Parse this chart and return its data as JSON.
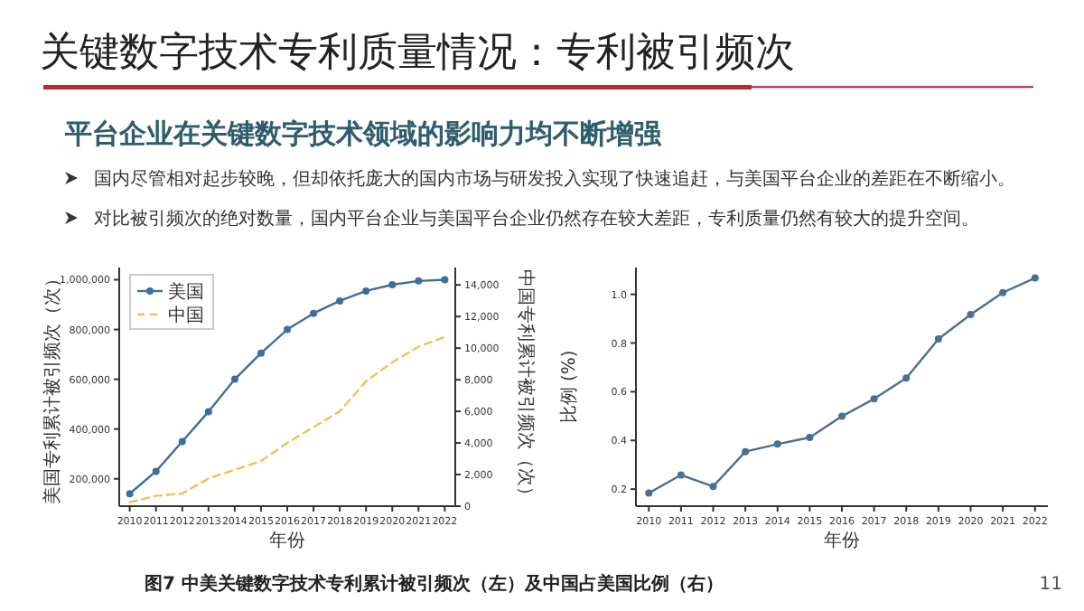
{
  "chart_data": [
    {
      "type": "line",
      "title": "关键数字技术专利质量情况：专利被引频次",
      "subtitle": "平台企业在关键数字技术领域的影响力均不断增强",
      "annotations": [
        "国内尽管相对起步较晚，但却依托庞大的国内市场与研发投入实现了快速追赶，与美国平台企业的差距在不断缩小。",
        "对比被引频次的绝对数量，国内平台企业与美国平台企业仍然存在较大差距，专利质量仍然有较大的提升空间。",
        "图7 中美关键数字技术专利累计被引频次（左）及中国占美国比例（右）",
        "11"
      ],
      "xlabel": "年份",
      "ylabel": "美国专利累计被引频次（次）",
      "y2label": "中国专利累计被引频次（次）",
      "categories": [
        "2010",
        "2011",
        "2012",
        "2013",
        "2014",
        "2015",
        "2016",
        "2017",
        "2018",
        "2019",
        "2020",
        "2021",
        "2022"
      ],
      "series": [
        {
          "name": "美国",
          "color": "#3d6e9e",
          "marker": "circle",
          "line_style": "solid",
          "values": [
            140000,
            230000,
            350000,
            470000,
            600000,
            705000,
            800000,
            865000,
            915000,
            955000,
            980000,
            995000,
            1000000
          ]
        },
        {
          "name": "中国",
          "color": "#f2c14e",
          "marker": "none",
          "line_style": "dashed",
          "axis": "y2",
          "values": [
            250,
            650,
            800,
            1750,
            2300,
            2850,
            4000,
            5000,
            6000,
            7900,
            9100,
            10100,
            10700
          ]
        }
      ],
      "ylim": [
        90000,
        1049000
      ],
      "yticks": [
        {
          "value": 200000,
          "label": "200,000"
        },
        {
          "value": 400000,
          "label": "400,000"
        },
        {
          "value": 600000,
          "label": "600,000"
        },
        {
          "value": 800000,
          "label": "800,000"
        },
        {
          "value": 1000000,
          "label": "1,000,000"
        }
      ],
      "y2lim": [
        0,
        15100
      ],
      "y2ticks": [
        0,
        {
          "value": 2000,
          "label": "2,000"
        },
        {
          "value": 4000,
          "label": "4,000"
        },
        {
          "value": 6000,
          "label": "6,000"
        },
        {
          "value": 8000,
          "label": "8,000"
        },
        {
          "value": 10000,
          "label": "10,000"
        },
        {
          "value": 12000,
          "label": "12,000"
        },
        {
          "value": 14000,
          "label": "14,000"
        }
      ],
      "legend": "top left",
      "grid": false
    },
    {
      "type": "line",
      "xlabel": "年份",
      "ylabel": "比例 (%)",
      "categories": [
        "2010",
        "2011",
        "2012",
        "2013",
        "2014",
        "2015",
        "2016",
        "2017",
        "2018",
        "2019",
        "2020",
        "2021",
        "2022"
      ],
      "series": [
        {
          "color": "#4a6f8f",
          "marker": "circle",
          "line_style": "solid",
          "values": [
            0.184,
            0.258,
            0.211,
            0.354,
            0.385,
            0.412,
            0.499,
            0.571,
            0.656,
            0.817,
            0.917,
            1.007,
            1.067
          ]
        }
      ],
      "ylim": [
        0.13,
        1.11
      ],
      "yticks": [
        {
          "value": 0.2,
          "label": "0.2"
        },
        {
          "value": 0.4,
          "label": "0.4"
        },
        {
          "value": 0.6,
          "label": "0.6"
        },
        {
          "value": 0.8,
          "label": "0.8"
        },
        {
          "value": 1,
          "label": "1.0"
        }
      ],
      "grid": false
    }
  ]
}
